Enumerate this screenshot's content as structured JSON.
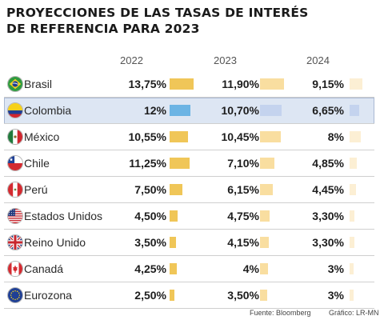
{
  "title_lines": [
    "PROYECCIONES DE LAS TASAS DE INTERÉS",
    "DE REFERENCIA PARA 2023"
  ],
  "footer": {
    "source": "Fuente: Bloomberg",
    "credit": "Gráfico: LR-MN"
  },
  "colors": {
    "bar_2022": "#f0c658",
    "bar_2023": "#f9dea0",
    "bar_2024": "#fcefd4",
    "colombia_2022": "#6cb4e4",
    "colombia_2023": "#c4d3ee",
    "colombia_2024": "#c4d3ee",
    "highlight_row": "#dde6f3"
  },
  "chart_data": {
    "type": "table",
    "columns": [
      "2022",
      "2023",
      "2024"
    ],
    "highlighted_row": "Colombia",
    "rows": [
      {
        "country": "Brasil",
        "flag": "brazil-flag",
        "labels": [
          "13,75%",
          "11,90%",
          "9,15%"
        ],
        "values": [
          13.75,
          11.9,
          9.15
        ]
      },
      {
        "country": "Colombia",
        "flag": "colombia-flag",
        "labels": [
          "12%",
          "10,70%",
          "6,65%"
        ],
        "values": [
          12.0,
          10.7,
          6.65
        ]
      },
      {
        "country": "México",
        "flag": "mexico-flag",
        "labels": [
          "10,55%",
          "10,45%",
          "8%"
        ],
        "values": [
          10.55,
          10.45,
          8.0
        ]
      },
      {
        "country": "Chile",
        "flag": "chile-flag",
        "labels": [
          "11,25%",
          "7,10%",
          "4,85%"
        ],
        "values": [
          11.25,
          7.1,
          4.85
        ]
      },
      {
        "country": "Perú",
        "flag": "peru-flag",
        "labels": [
          "7,50%",
          "6,15%",
          "4,45%"
        ],
        "values": [
          7.5,
          6.15,
          4.45
        ]
      },
      {
        "country": "Estados Unidos",
        "flag": "usa-flag",
        "labels": [
          "4,50%",
          "4,75%",
          "3,30%"
        ],
        "values": [
          4.5,
          4.75,
          3.3
        ]
      },
      {
        "country": "Reino Unido",
        "flag": "uk-flag",
        "labels": [
          "3,50%",
          "4,15%",
          "3,30%"
        ],
        "values": [
          3.5,
          4.15,
          3.3
        ]
      },
      {
        "country": "Canadá",
        "flag": "canada-flag",
        "labels": [
          "4,25%",
          "4%",
          "3%"
        ],
        "values": [
          4.25,
          4.0,
          3.0
        ]
      },
      {
        "country": "Eurozona",
        "flag": "eu-flag",
        "labels": [
          "2,50%",
          "3,50%",
          "3%"
        ],
        "values": [
          2.5,
          3.5,
          3.0
        ]
      }
    ]
  }
}
